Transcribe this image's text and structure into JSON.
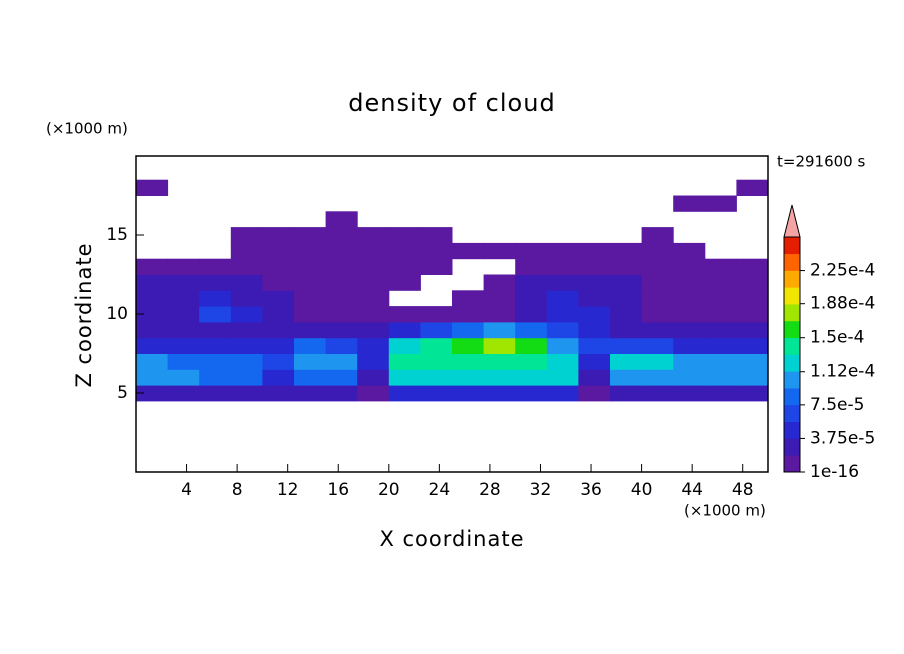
{
  "chart_data": {
    "type": "contour",
    "title": "density of cloud",
    "xlabel": "X coordinate",
    "ylabel": "Z coordinate",
    "xunit": "(×1000 m)",
    "yunit": "(×1000 m)",
    "annotation": "t=291600 s",
    "xlim": [
      0,
      50
    ],
    "ylim": [
      0,
      20
    ],
    "xticks": [
      4,
      8,
      12,
      16,
      20,
      24,
      28,
      32,
      36,
      40,
      44,
      48
    ],
    "yticks": [
      5,
      10,
      15
    ],
    "x": [
      1.25,
      3.75,
      6.25,
      8.75,
      11.25,
      13.75,
      16.25,
      18.75,
      21.25,
      23.75,
      26.25,
      28.75,
      31.25,
      33.75,
      36.25,
      38.75,
      41.25,
      43.75,
      46.25,
      48.75
    ],
    "y": [
      5,
      6,
      7,
      8,
      9,
      10,
      11,
      12,
      13,
      14,
      15,
      16,
      17,
      18
    ],
    "values": [
      [
        3e-05,
        3e-05,
        3e-05,
        3e-05,
        2e-05,
        3e-05,
        3e-05,
        1e-05,
        4e-05,
        4e-05,
        4e-05,
        4e-05,
        4e-05,
        4e-05,
        1e-05,
        3e-05,
        3e-05,
        3e-05,
        3e-05,
        3e-05
      ],
      [
        0.00011,
        0.0001,
        9e-05,
        9e-05,
        5e-05,
        8e-05,
        8e-05,
        2e-05,
        0.00012,
        0.00013,
        0.00013,
        0.00013,
        0.00013,
        0.00012,
        3e-05,
        0.00011,
        0.00011,
        0.0001,
        0.0001,
        0.00011
      ],
      [
        0.00011,
        9e-05,
        8e-05,
        8e-05,
        6e-05,
        0.0001,
        0.0001,
        4e-05,
        0.00014,
        0.00015,
        0.00015,
        0.00015,
        0.00015,
        0.00013,
        5e-05,
        0.00012,
        0.00012,
        0.00011,
        0.00011,
        0.0001
      ],
      [
        5e-05,
        4e-05,
        4e-05,
        4e-05,
        5e-05,
        8e-05,
        7e-05,
        5e-05,
        0.00012,
        0.00014,
        0.00016,
        0.00017,
        0.00016,
        0.00011,
        6e-05,
        7e-05,
        6e-05,
        5e-05,
        5e-05,
        4e-05
      ],
      [
        2e-05,
        2e-05,
        3e-05,
        2e-05,
        2e-05,
        3e-05,
        2e-05,
        3e-05,
        4e-05,
        6e-05,
        8e-05,
        0.0001,
        9e-05,
        6e-05,
        5e-05,
        3e-05,
        2e-05,
        2e-05,
        2e-05,
        2e-05
      ],
      [
        2e-05,
        3e-05,
        6e-05,
        4e-05,
        2e-05,
        1e-05,
        1e-05,
        1e-05,
        1e-05,
        1e-05,
        1e-05,
        1e-05,
        2e-05,
        4e-05,
        5e-05,
        2e-05,
        1e-05,
        1e-05,
        1e-05,
        1e-05
      ],
      [
        2e-05,
        3e-05,
        5e-05,
        3e-05,
        2e-05,
        1e-05,
        1e-05,
        1e-05,
        null,
        null,
        5e-06,
        1e-05,
        3e-05,
        5e-05,
        3e-05,
        2e-05,
        1e-05,
        1e-05,
        1e-05,
        1e-05
      ],
      [
        2e-05,
        2e-05,
        2e-05,
        2e-05,
        1e-05,
        1e-05,
        1e-05,
        1e-05,
        1e-05,
        null,
        null,
        1e-05,
        3e-05,
        3e-05,
        2e-05,
        2e-05,
        1e-05,
        1e-05,
        1e-05,
        1e-05
      ],
      [
        1e-05,
        1e-05,
        1e-05,
        1e-05,
        1e-05,
        1e-05,
        1e-05,
        5e-06,
        5e-06,
        5e-06,
        null,
        null,
        5e-06,
        1e-05,
        1e-05,
        1e-05,
        1e-05,
        1e-05,
        1e-05,
        1e-05
      ],
      [
        null,
        null,
        null,
        5e-06,
        5e-06,
        5e-06,
        5e-06,
        5e-06,
        5e-06,
        5e-06,
        5e-06,
        5e-06,
        5e-06,
        5e-06,
        5e-06,
        5e-06,
        5e-06,
        5e-06,
        null,
        null
      ],
      [
        null,
        null,
        null,
        5e-06,
        5e-06,
        5e-06,
        5e-06,
        5e-06,
        5e-06,
        5e-06,
        null,
        null,
        null,
        null,
        null,
        null,
        5e-06,
        null,
        null,
        null
      ],
      [
        null,
        null,
        null,
        null,
        null,
        null,
        5e-06,
        null,
        null,
        null,
        null,
        null,
        null,
        null,
        null,
        null,
        null,
        null,
        null,
        null
      ],
      [
        null,
        null,
        null,
        null,
        null,
        null,
        null,
        null,
        null,
        null,
        null,
        null,
        null,
        null,
        null,
        null,
        null,
        5e-06,
        5e-06,
        null
      ],
      [
        5e-06,
        null,
        null,
        null,
        null,
        null,
        null,
        null,
        null,
        null,
        null,
        null,
        null,
        null,
        null,
        null,
        null,
        null,
        null,
        5e-06
      ]
    ],
    "clim": [
      1e-16,
      0.0002625
    ],
    "colors": [
      "#5a19a0",
      "#3c1ab4",
      "#2828d0",
      "#1e46e6",
      "#1468f0",
      "#1e96f0",
      "#00d2d2",
      "#00e696",
      "#14dc14",
      "#a0e600",
      "#f0e600",
      "#ffaa00",
      "#ff6400",
      "#e61e00"
    ],
    "extend_color": "#f4a4a4",
    "cticks": [
      {
        "value": 1e-16,
        "label": "1e-16"
      },
      {
        "value": 3.75e-05,
        "label": "3.75e-5"
      },
      {
        "value": 7.5e-05,
        "label": "7.5e-5"
      },
      {
        "value": 0.000112,
        "label": "1.12e-4"
      },
      {
        "value": 0.00015,
        "label": "1.5e-4"
      },
      {
        "value": 0.000188,
        "label": "1.88e-4"
      },
      {
        "value": 0.000225,
        "label": "2.25e-4"
      }
    ]
  }
}
